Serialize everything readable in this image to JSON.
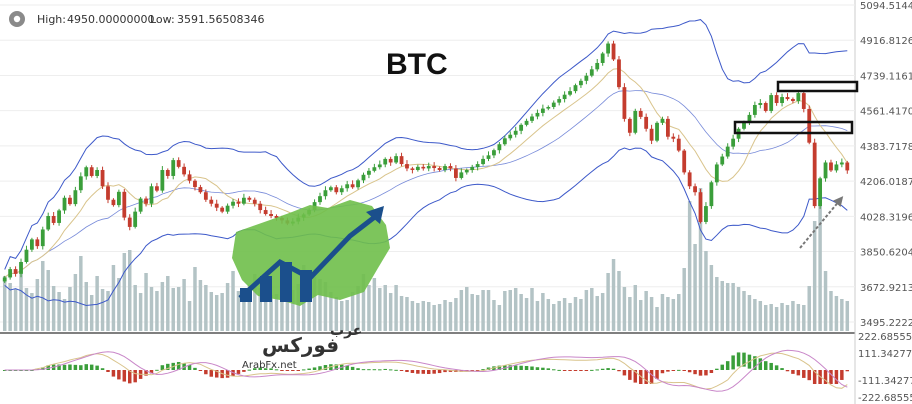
{
  "header": {
    "high_label": "High:",
    "high_value": "4950.00000000",
    "low_label": "Low:",
    "low_value": "3591.56508346",
    "settings_icon": "gear-icon"
  },
  "title": "BTC",
  "logo": {
    "text_ar_top": "عرب",
    "text_ar_main": "فوركس",
    "text_url": "ArabFx.net"
  },
  "colors": {
    "up": "#3a9e3a",
    "down": "#c43c2e",
    "volume": "#b3c3c5",
    "bollinger": "#3d59c9",
    "ma_slow": "#d9c48c",
    "macd_up": "#3a9e3a",
    "macd_down": "#c43c2e",
    "macd_signal": "#c987c9",
    "macd_line": "#d9c48c"
  },
  "chart_data": {
    "type": "candlestick",
    "title": "BTC",
    "ylim": [
      3495.2222,
      5094.5144
    ],
    "y_ticks": [
      "5094.5144",
      "4916.8126",
      "4739.1161",
      "4561.4170",
      "4383.7178",
      "4206.0187",
      "4028.3196",
      "3850.6204",
      "3672.9213",
      "3495.2222"
    ],
    "macd_ticks": [
      "222.685555",
      "111.342777",
      "-111.342777",
      "-222.685555"
    ],
    "candles_close": [
      3720,
      3762,
      3738,
      3798,
      3860,
      3912,
      3878,
      3962,
      4030,
      3995,
      4058,
      4122,
      4090,
      4160,
      4230,
      4276,
      4232,
      4262,
      4180,
      4112,
      4085,
      4152,
      4022,
      3975,
      4052,
      4118,
      4092,
      4180,
      4158,
      4262,
      4232,
      4312,
      4278,
      4240,
      4208,
      4176,
      4150,
      4112,
      4092,
      4072,
      4052,
      4082,
      4102,
      4092,
      4122,
      4112,
      4092,
      4060,
      4040,
      4030,
      4020,
      4008,
      3992,
      4002,
      4022,
      4038,
      4060,
      4100,
      4130,
      4160,
      4175,
      4150,
      4170,
      4190,
      4175,
      4210,
      4238,
      4258,
      4276,
      4290,
      4318,
      4300,
      4332,
      4292,
      4270,
      4262,
      4278,
      4270,
      4282,
      4272,
      4262,
      4282,
      4270,
      4222,
      4250,
      4262,
      4277,
      4292,
      4318,
      4336,
      4362,
      4392,
      4422,
      4440,
      4460,
      4490,
      4510,
      4532,
      4550,
      4572,
      4580,
      4602,
      4620,
      4642,
      4660,
      4690,
      4712,
      4738,
      4770,
      4802,
      4850,
      4900,
      4820,
      4680,
      4520,
      4450,
      4560,
      4530,
      4470,
      4410,
      4500,
      4520,
      4430,
      4420,
      4360,
      4250,
      4180,
      4150,
      4000,
      4080,
      4200,
      4290,
      4330,
      4380,
      4420,
      4470,
      4500,
      4540,
      4590,
      4600,
      4560,
      4640,
      4600,
      4630,
      4620,
      4610,
      4650,
      4570,
      4400,
      4080,
      4220,
      4300,
      4260,
      4290,
      4300,
      4260
    ],
    "volume": [
      55,
      48,
      42,
      57,
      43,
      38,
      52,
      70,
      61,
      45,
      39,
      32,
      44,
      57,
      75,
      49,
      36,
      55,
      42,
      40,
      66,
      53,
      78,
      81,
      46,
      38,
      58,
      44,
      40,
      49,
      55,
      43,
      44,
      52,
      30,
      64,
      51,
      46,
      39,
      36,
      38,
      48,
      60,
      40,
      35,
      46,
      57,
      43,
      39,
      36,
      37,
      30,
      35,
      41,
      47,
      66,
      44,
      54,
      52,
      49,
      39,
      34,
      30,
      31,
      39,
      45,
      57,
      46,
      53,
      43,
      46,
      38,
      46,
      35,
      34,
      30,
      28,
      30,
      29,
      26,
      27,
      31,
      29,
      33,
      41,
      44,
      37,
      36,
      41,
      41,
      31,
      26,
      40,
      41,
      43,
      37,
      33,
      43,
      30,
      38,
      32,
      27,
      30,
      33,
      28,
      34,
      32,
      41,
      43,
      35,
      38,
      58,
      72,
      60,
      44,
      34,
      46,
      31,
      40,
      34,
      24,
      37,
      34,
      32,
      37,
      63,
      130,
      87,
      143,
      80,
      66,
      54,
      50,
      48,
      48,
      44,
      40,
      36,
      32,
      30,
      26,
      27,
      24,
      28,
      26,
      30,
      27,
      26,
      45,
      110,
      150,
      60,
      40,
      35,
      32,
      30
    ]
  }
}
